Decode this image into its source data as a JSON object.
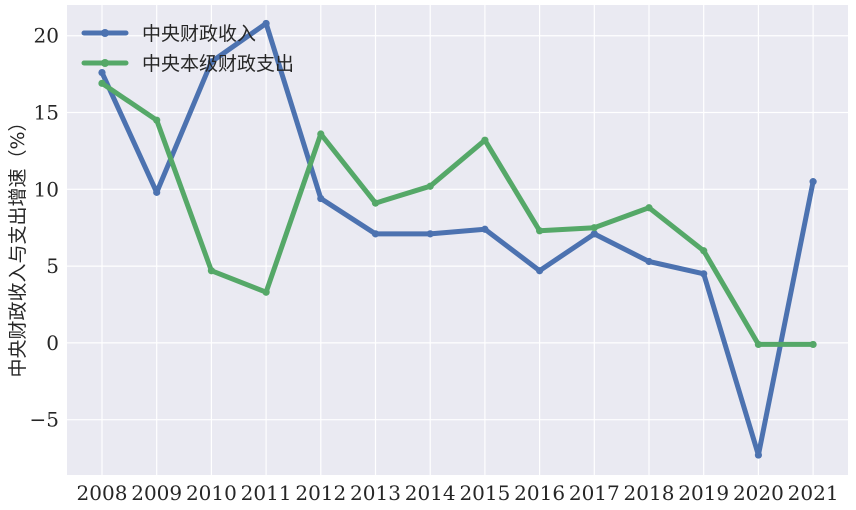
{
  "chart_data": {
    "type": "line",
    "title": "",
    "xlabel": "",
    "ylabel": "中央财政收入与支出增速（%）",
    "categories": [
      "2008",
      "2009",
      "2010",
      "2011",
      "2012",
      "2013",
      "2014",
      "2015",
      "2016",
      "2017",
      "2018",
      "2019",
      "2020",
      "2021"
    ],
    "ylim": [
      -8.6,
      22
    ],
    "yticks": [
      -5,
      0,
      5,
      10,
      15,
      20
    ],
    "ytick_labels": [
      "−5",
      "0",
      "5",
      "10",
      "15",
      "20"
    ],
    "grid": true,
    "legend_position": "top-left",
    "series": [
      {
        "name": "中央财政收入",
        "color": "#4c72b0",
        "values": [
          17.6,
          9.8,
          18.3,
          20.8,
          9.4,
          7.1,
          7.1,
          7.4,
          4.7,
          7.1,
          5.3,
          4.5,
          -7.3,
          10.5
        ]
      },
      {
        "name": "中央本级财政支出",
        "color": "#55a868",
        "values": [
          16.9,
          14.5,
          4.7,
          3.3,
          13.6,
          9.1,
          10.2,
          13.2,
          7.3,
          7.5,
          8.8,
          6.0,
          -0.1,
          -0.1
        ]
      }
    ],
    "colors": {
      "background": "#eaeaf2",
      "grid": "#ffffff"
    }
  }
}
